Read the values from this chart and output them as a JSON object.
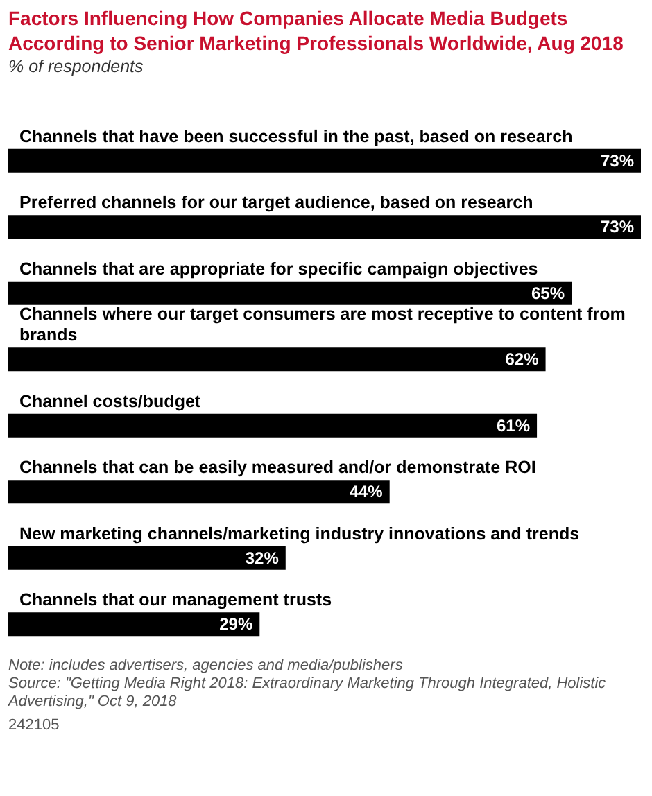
{
  "chart_data": {
    "type": "bar",
    "orientation": "horizontal",
    "title": "Factors Influencing How Companies Allocate Media Budgets According to Senior Marketing Professionals Worldwide, Aug 2018",
    "subtitle": "% of respondents",
    "categories": [
      "Channels that have been successful in the past, based on research",
      "Preferred channels for our target audience, based on research",
      "Channels that are appropriate for specific campaign objectives",
      "Channels where our target consumers are most receptive to content from brands",
      "Channel costs/budget",
      "Channels that can be easily measured and/or demonstrate ROI",
      "New marketing channels/marketing industry innovations and trends",
      "Channels that our management trusts"
    ],
    "values": [
      73,
      73,
      65,
      62,
      61,
      44,
      32,
      29
    ],
    "value_labels": [
      "73%",
      "73%",
      "65%",
      "62%",
      "61%",
      "44%",
      "32%",
      "29%"
    ],
    "color": "#000000",
    "annotations": [
      "Note: includes advertisers, agencies and media/publishers",
      "Source: \"Getting Media Right 2018: Extraordinary Marketing Through Integrated, Holistic Advertising,\" Oct 9, 2018",
      "242105"
    ]
  }
}
